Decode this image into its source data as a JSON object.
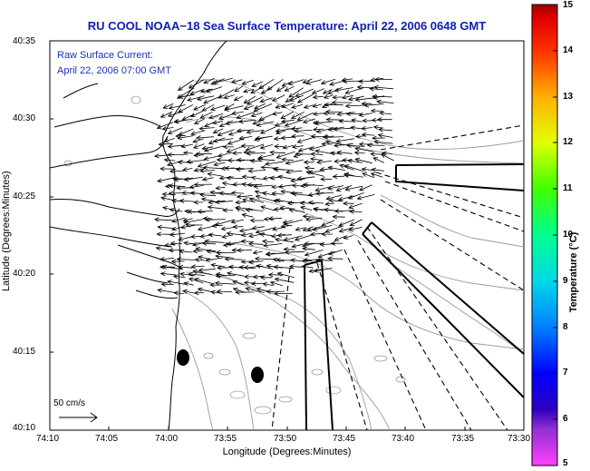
{
  "title": "RU COOL  NOAA−18  Sea Surface Temperature:  April 22, 2006 0648 GMT",
  "current_label": "Raw Surface Current:",
  "current_time": "April 22, 2006 07:00 GMT",
  "scale_label": "50 cm/s",
  "axes": {
    "xlabel": "Longitude (Degrees:Minutes)",
    "ylabel": "Latitude (Degrees:Minutes)",
    "x_ticks": [
      "74:10",
      "74:05",
      "74:00",
      "73:55",
      "73:50",
      "73:45",
      "73:40",
      "73:35",
      "73:30"
    ],
    "y_ticks": [
      "40:35",
      "40:30",
      "40:25",
      "40:20",
      "40:15",
      "40:10"
    ]
  },
  "colorbar": {
    "label": "Temperature (°C)",
    "ticks": [
      "15",
      "14",
      "13",
      "12",
      "11",
      "10",
      "9",
      "8",
      "7",
      "6",
      "5"
    ],
    "min": 5,
    "max": 15,
    "colors": [
      "#ff40ff",
      "#5000b0",
      "#0000ff",
      "#0090ff",
      "#00e0e0",
      "#00ff80",
      "#60ff00",
      "#e0ff00",
      "#ffc000",
      "#ff6000",
      "#ff0000",
      "#a00000"
    ]
  }
}
